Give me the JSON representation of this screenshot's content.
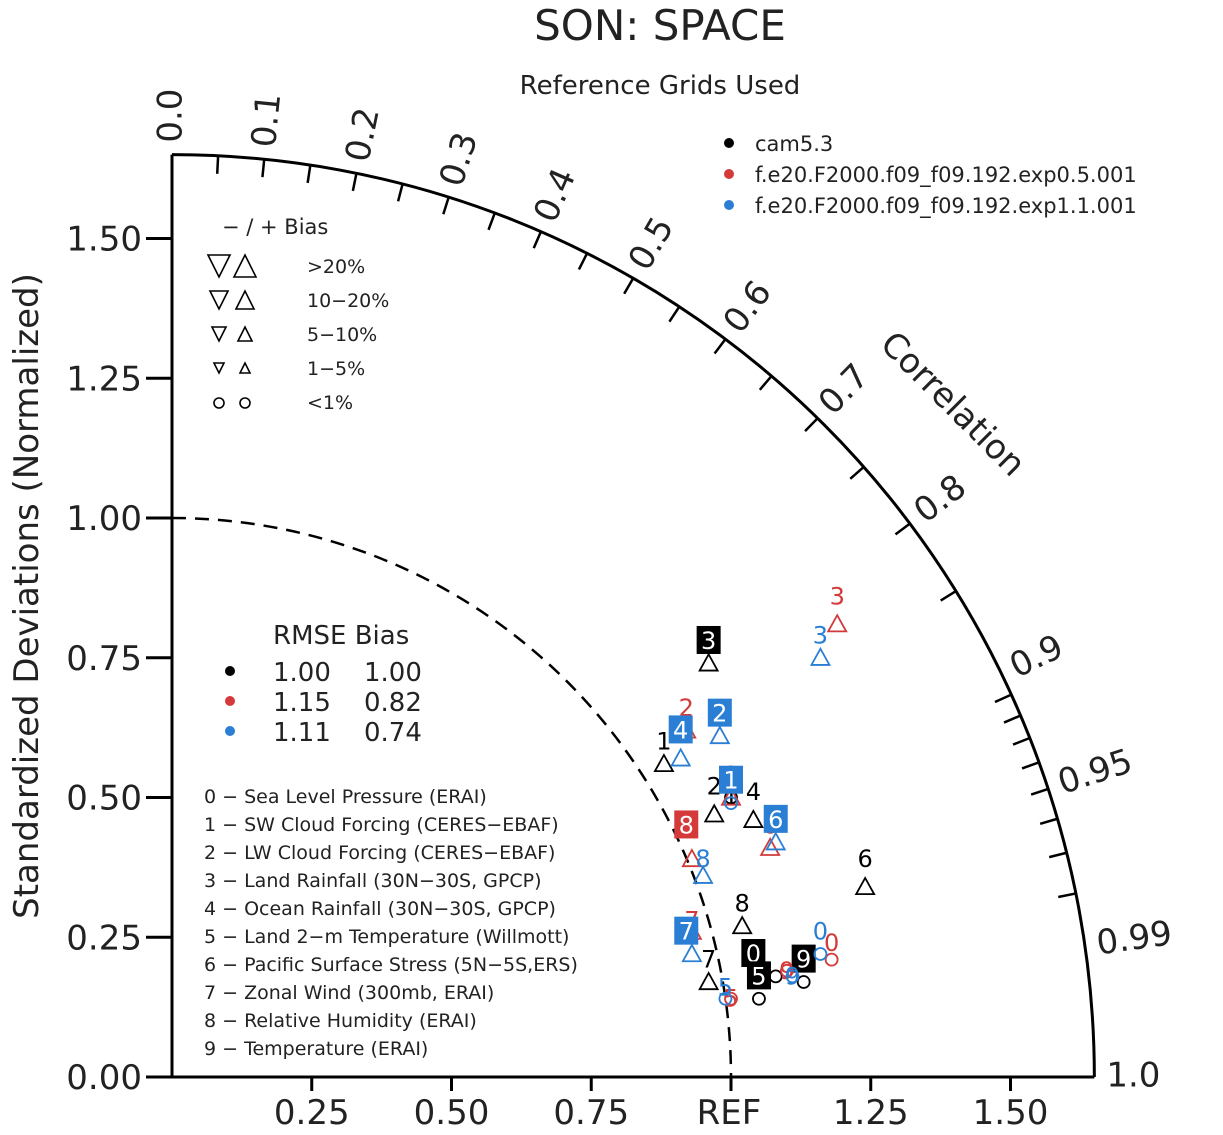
{
  "chart_data": {
    "type": "scatter",
    "title": "SON: SPACE",
    "subtitle": "Reference Grids Used",
    "ylabel": "Standardized Deviations (Normalized)",
    "arc_label": "Correlation",
    "ref_label": "REF",
    "std_ticks": [
      "0.00",
      "0.25",
      "0.50",
      "0.75",
      "1.00",
      "1.25",
      "1.50"
    ],
    "x_ticks": [
      "0.25",
      "0.50",
      "0.75",
      "1.25",
      "1.50"
    ],
    "corr_ticks": [
      "0.0",
      "0.1",
      "0.2",
      "0.3",
      "0.4",
      "0.5",
      "0.6",
      "0.7",
      "0.8",
      "0.9",
      "0.95",
      "0.99",
      "1.0"
    ],
    "std_max": 1.65,
    "series": [
      {
        "name": "cam5.3",
        "color": "#000000"
      },
      {
        "name": "f.e20.F2000.f09_f09.192.exp0.5.001",
        "color": "#d43a3a"
      },
      {
        "name": "f.e20.F2000.f09_f09.192.exp1.1.001",
        "color": "#2a7fd4"
      }
    ],
    "bias_legend": {
      "header": "−  /  +     Bias",
      "rows": [
        ">20%",
        "10−20%",
        "5−10%",
        "1−5%",
        "<1%"
      ]
    },
    "rmse_table": {
      "header": "RMSE Bias",
      "rows": [
        {
          "rmse": "1.00",
          "bias": "1.00",
          "color": "#000000"
        },
        {
          "rmse": "1.15",
          "bias": "0.82",
          "color": "#d43a3a"
        },
        {
          "rmse": "1.11",
          "bias": "0.74",
          "color": "#2a7fd4"
        }
      ]
    },
    "variables": [
      "0 − Sea Level Pressure (ERAI)",
      "1 − SW Cloud Forcing (CERES−EBAF)",
      "2 − LW Cloud Forcing (CERES−EBAF)",
      "3 − Land Rainfall (30N−30S, GPCP)",
      "4 − Ocean Rainfall (30N−30S, GPCP)",
      "5 − Land 2−m Temperature (Willmott)",
      "6 − Pacific Surface Stress (5N−5S,ERS)",
      "7 − Zonal Wind (300mb, ERAI)",
      "8 − Relative Humidity (ERAI)",
      "9 − Temperature (ERAI)"
    ],
    "points": [
      {
        "s": 0,
        "id": "0",
        "x": 1.08,
        "y": 0.18,
        "m": "circle",
        "box": true,
        "lx": -0.04,
        "ly": 0.04
      },
      {
        "s": 0,
        "id": "1",
        "x": 1.0,
        "y": 0.5,
        "m": "circle",
        "box": false,
        "lx": 0.0,
        "ly": 0.0
      },
      {
        "s": 0,
        "id": "2",
        "x": 0.97,
        "y": 0.47,
        "m": "up",
        "box": false,
        "lx": 0.0,
        "ly": 0.05
      },
      {
        "s": 0,
        "id": "3",
        "x": 0.96,
        "y": 0.74,
        "m": "up",
        "box": true,
        "lx": 0.0,
        "ly": 0.04
      },
      {
        "s": 0,
        "id": "4",
        "x": 1.04,
        "y": 0.46,
        "m": "up",
        "box": false,
        "lx": 0.0,
        "ly": 0.05
      },
      {
        "s": 0,
        "id": "5",
        "x": 1.05,
        "y": 0.14,
        "m": "circle",
        "box": true,
        "lx": 0.0,
        "ly": 0.04
      },
      {
        "s": 0,
        "id": "6",
        "x": 1.24,
        "y": 0.34,
        "m": "up",
        "box": false,
        "lx": 0.0,
        "ly": 0.05
      },
      {
        "s": 0,
        "id": "7",
        "x": 0.96,
        "y": 0.17,
        "m": "up",
        "box": false,
        "lx": 0.0,
        "ly": 0.04
      },
      {
        "s": 0,
        "id": "8",
        "x": 1.02,
        "y": 0.27,
        "m": "up",
        "box": false,
        "lx": 0.0,
        "ly": 0.04
      },
      {
        "s": 0,
        "id": "9",
        "x": 1.13,
        "y": 0.17,
        "m": "circle",
        "box": true,
        "lx": 0.0,
        "ly": 0.04
      },
      {
        "s": 0,
        "id": "1",
        "x": 0.88,
        "y": 0.56,
        "m": "up",
        "box": false,
        "lx": 0.0,
        "ly": 0.04
      },
      {
        "s": 1,
        "id": "0",
        "x": 1.18,
        "y": 0.21,
        "m": "circle",
        "box": false,
        "lx": 0.0,
        "ly": 0.03
      },
      {
        "s": 1,
        "id": "1",
        "x": 1.0,
        "y": 0.5,
        "m": "up",
        "box": false,
        "lx": 0.0,
        "ly": 0.04
      },
      {
        "s": 1,
        "id": "2",
        "x": 0.92,
        "y": 0.62,
        "m": "up",
        "box": false,
        "lx": 0.0,
        "ly": 0.04
      },
      {
        "s": 1,
        "id": "3",
        "x": 1.19,
        "y": 0.81,
        "m": "up",
        "box": false,
        "lx": 0.0,
        "ly": 0.05
      },
      {
        "s": 1,
        "id": "5",
        "x": 1.0,
        "y": 0.14,
        "m": "circle",
        "box": false,
        "lx": 0.0,
        "ly": 0.0
      },
      {
        "s": 1,
        "id": "6",
        "x": 1.07,
        "y": 0.41,
        "m": "up",
        "box": false,
        "lx": 0.0,
        "ly": 0.04
      },
      {
        "s": 1,
        "id": "7",
        "x": 0.93,
        "y": 0.26,
        "m": "up",
        "box": false,
        "lx": 0.0,
        "ly": 0.02
      },
      {
        "s": 1,
        "id": "8",
        "x": 0.93,
        "y": 0.39,
        "m": "up",
        "box": true,
        "lx": -0.01,
        "ly": 0.06
      },
      {
        "s": 1,
        "id": "9",
        "x": 1.1,
        "y": 0.19,
        "m": "circle",
        "box": false,
        "lx": 0.0,
        "ly": 0.0
      },
      {
        "s": 2,
        "id": "0",
        "x": 1.16,
        "y": 0.22,
        "m": "circle",
        "box": false,
        "lx": 0.0,
        "ly": 0.04
      },
      {
        "s": 2,
        "id": "1",
        "x": 1.0,
        "y": 0.49,
        "m": "circle",
        "box": true,
        "lx": 0.0,
        "ly": 0.04
      },
      {
        "s": 2,
        "id": "2",
        "x": 0.98,
        "y": 0.61,
        "m": "up",
        "box": true,
        "lx": 0.0,
        "ly": 0.04
      },
      {
        "s": 2,
        "id": "3",
        "x": 1.16,
        "y": 0.75,
        "m": "up",
        "box": false,
        "lx": 0.0,
        "ly": 0.04
      },
      {
        "s": 2,
        "id": "4",
        "x": 0.91,
        "y": 0.57,
        "m": "up",
        "box": true,
        "lx": 0.0,
        "ly": 0.05
      },
      {
        "s": 2,
        "id": "5",
        "x": 0.99,
        "y": 0.14,
        "m": "circle",
        "box": false,
        "lx": 0.0,
        "ly": 0.02
      },
      {
        "s": 2,
        "id": "6",
        "x": 1.08,
        "y": 0.42,
        "m": "up",
        "box": true,
        "lx": 0.0,
        "ly": 0.04
      },
      {
        "s": 2,
        "id": "7",
        "x": 0.93,
        "y": 0.22,
        "m": "up",
        "box": true,
        "lx": -0.01,
        "ly": 0.04
      },
      {
        "s": 2,
        "id": "8",
        "x": 0.95,
        "y": 0.36,
        "m": "up",
        "box": false,
        "lx": 0.0,
        "ly": 0.03
      },
      {
        "s": 2,
        "id": "9",
        "x": 1.11,
        "y": 0.18,
        "m": "circle",
        "box": false,
        "lx": 0.0,
        "ly": 0.0
      }
    ]
  }
}
